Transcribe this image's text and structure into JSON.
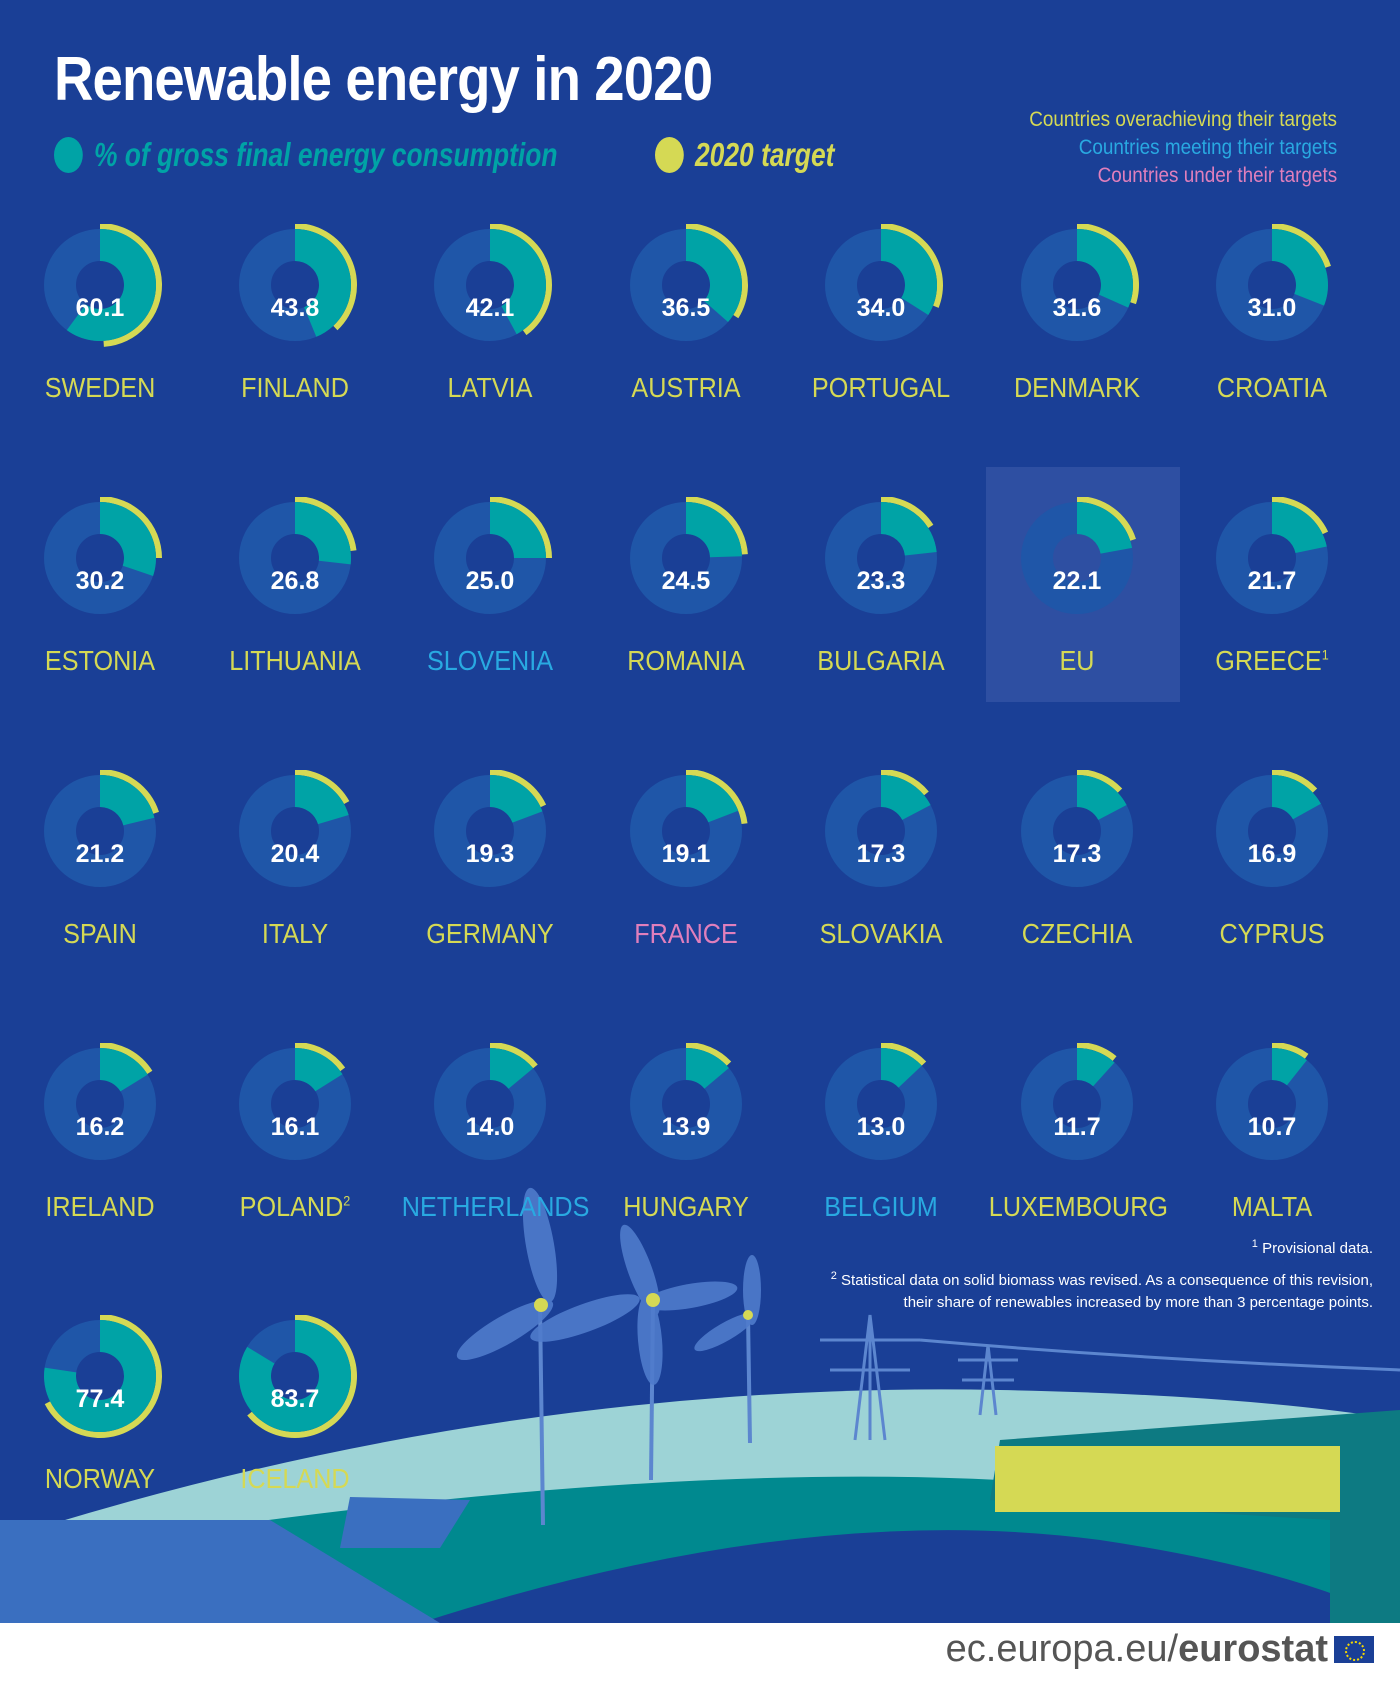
{
  "title": "Renewable energy in 2020",
  "legend": {
    "share": "% of gross final energy consumption",
    "target": "2020 target",
    "share_color": "#00a3a6",
    "target_color": "#d5d954"
  },
  "status_legend": [
    {
      "label": "Countries overachieving their targets",
      "color": "#d5d954"
    },
    {
      "label": "Countries meeting their targets",
      "color": "#29a9e1"
    },
    {
      "label": "Countries under their targets",
      "color": "#e07fbc"
    }
  ],
  "chart_data": {
    "type": "donut-grid",
    "unit": "% of gross final energy consumption",
    "items": [
      {
        "country": "SWEDEN",
        "value": 60.1,
        "target": 49,
        "status": "over"
      },
      {
        "country": "FINLAND",
        "value": 43.8,
        "target": 38,
        "status": "over"
      },
      {
        "country": "LATVIA",
        "value": 42.1,
        "target": 40,
        "status": "over"
      },
      {
        "country": "AUSTRIA",
        "value": 36.5,
        "target": 34,
        "status": "over"
      },
      {
        "country": "PORTUGAL",
        "value": 34.0,
        "target": 31,
        "status": "over"
      },
      {
        "country": "DENMARK",
        "value": 31.6,
        "target": 30,
        "status": "over"
      },
      {
        "country": "CROATIA",
        "value": 31.0,
        "target": 20,
        "status": "over"
      },
      {
        "country": "ESTONIA",
        "value": 30.2,
        "target": 25,
        "status": "over"
      },
      {
        "country": "LITHUANIA",
        "value": 26.8,
        "target": 23,
        "status": "over"
      },
      {
        "country": "SLOVENIA",
        "value": 25.0,
        "target": 25,
        "status": "meeting"
      },
      {
        "country": "ROMANIA",
        "value": 24.5,
        "target": 24,
        "status": "over"
      },
      {
        "country": "BULGARIA",
        "value": 23.3,
        "target": 16,
        "status": "over"
      },
      {
        "country": "EU",
        "value": 22.1,
        "target": 20,
        "status": "over",
        "highlight": true
      },
      {
        "country": "GREECE",
        "value": 21.7,
        "target": 18,
        "status": "over",
        "note": "1"
      },
      {
        "country": "SPAIN",
        "value": 21.2,
        "target": 20,
        "status": "over"
      },
      {
        "country": "ITALY",
        "value": 20.4,
        "target": 17,
        "status": "over"
      },
      {
        "country": "GERMANY",
        "value": 19.3,
        "target": 18,
        "status": "over"
      },
      {
        "country": "FRANCE",
        "value": 19.1,
        "target": 23,
        "status": "under"
      },
      {
        "country": "SLOVAKIA",
        "value": 17.3,
        "target": 14,
        "status": "over"
      },
      {
        "country": "CZECHIA",
        "value": 17.3,
        "target": 13,
        "status": "over"
      },
      {
        "country": "CYPRUS",
        "value": 16.9,
        "target": 13,
        "status": "over"
      },
      {
        "country": "IRELAND",
        "value": 16.2,
        "target": 16,
        "status": "over"
      },
      {
        "country": "POLAND",
        "value": 16.1,
        "target": 15,
        "status": "over",
        "note": "2"
      },
      {
        "country": "NETHERLANDS",
        "value": 14.0,
        "target": 14,
        "status": "meeting"
      },
      {
        "country": "HUNGARY",
        "value": 13.9,
        "target": 13,
        "status": "over"
      },
      {
        "country": "BELGIUM",
        "value": 13.0,
        "target": 13,
        "status": "meeting"
      },
      {
        "country": "LUXEMBOURG",
        "value": 11.7,
        "target": 11,
        "status": "over"
      },
      {
        "country": "MALTA",
        "value": 10.7,
        "target": 10,
        "status": "over"
      },
      {
        "country": "NORWAY",
        "value": 77.4,
        "target": 67.5,
        "status": "over"
      },
      {
        "country": "ICELAND",
        "value": 83.7,
        "target": 64,
        "status": "over"
      }
    ]
  },
  "footnotes": [
    {
      "mark": "1",
      "text": "Provisional data."
    },
    {
      "mark": "2",
      "text": "Statistical data on solid biomass was revised. As a consequence of this revision,",
      "text2": "their share of renewables increased by more than 3 percentage points."
    }
  ],
  "brand": {
    "prefix": "ec.europa.eu/",
    "name": "eurostat"
  }
}
